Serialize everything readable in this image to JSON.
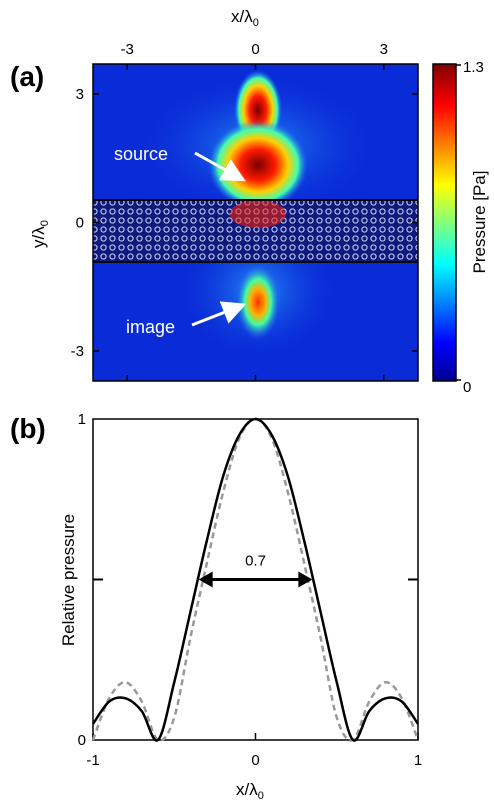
{
  "chart_data": [
    {
      "panel": "(a)",
      "type": "heatmap",
      "xlabel": "x/λ",
      "xlabel_sub": "0",
      "ylabel": "y/λ",
      "ylabel_sub": "0",
      "xticks": [
        "-3",
        "0",
        "3"
      ],
      "yticks": [
        "3",
        "0",
        "-3"
      ],
      "xlim": [
        -3.8,
        3.8
      ],
      "ylim": [
        -3.7,
        3.7
      ],
      "xtick_values": [
        -3,
        0,
        3
      ],
      "ytick_values": [
        3,
        0,
        -3
      ],
      "colorbar": {
        "label": "Pressure [Pa]",
        "min_label": "0",
        "max_label": "1.3",
        "min": 0,
        "max": 1.3,
        "colors": [
          "#00008f",
          "#0000ff",
          "#00ffff",
          "#ffff00",
          "#ff0000",
          "#800000"
        ]
      },
      "annotations": [
        {
          "text": "source",
          "color": "#ffffff"
        },
        {
          "text": "image",
          "color": "#ffffff"
        }
      ]
    },
    {
      "panel": "(b)",
      "type": "line",
      "xlabel": "x/λ",
      "xlabel_sub": "0",
      "ylabel": "Relative pressure",
      "xticks": [
        "-1",
        "0",
        "1"
      ],
      "yticks": [
        "1",
        "0"
      ],
      "xlim": [
        -1,
        1
      ],
      "ylim": [
        0,
        1
      ],
      "annotation": {
        "text": "0.7",
        "x_from": -0.35,
        "x_to": 0.35,
        "y": 0.5
      },
      "series": [
        {
          "style": "solid",
          "color": "#000000",
          "x": [
            -1,
            -0.9,
            -0.8,
            -0.7,
            -0.6,
            -0.5,
            -0.4,
            -0.3,
            -0.2,
            -0.1,
            0,
            0.1,
            0.2,
            0.3,
            0.4,
            0.5,
            0.6,
            0.7,
            0.8,
            0.9,
            1
          ],
          "y": [
            0.05,
            0.12,
            0.13,
            0.09,
            0.0,
            0.18,
            0.4,
            0.62,
            0.82,
            0.95,
            1.0,
            0.95,
            0.82,
            0.62,
            0.4,
            0.18,
            0.0,
            0.09,
            0.13,
            0.12,
            0.05
          ]
        },
        {
          "style": "dashed",
          "color": "#999999",
          "x": [
            -1,
            -0.9,
            -0.8,
            -0.7,
            -0.6,
            -0.5,
            -0.4,
            -0.3,
            -0.2,
            -0.1,
            0,
            0.1,
            0.2,
            0.3,
            0.4,
            0.5,
            0.6,
            0.7,
            0.8,
            0.9,
            1
          ],
          "y": [
            0.0,
            0.13,
            0.18,
            0.12,
            0.0,
            0.07,
            0.32,
            0.55,
            0.77,
            0.94,
            1.0,
            0.94,
            0.77,
            0.55,
            0.32,
            0.07,
            0.0,
            0.12,
            0.18,
            0.13,
            0.0
          ]
        }
      ]
    }
  ]
}
